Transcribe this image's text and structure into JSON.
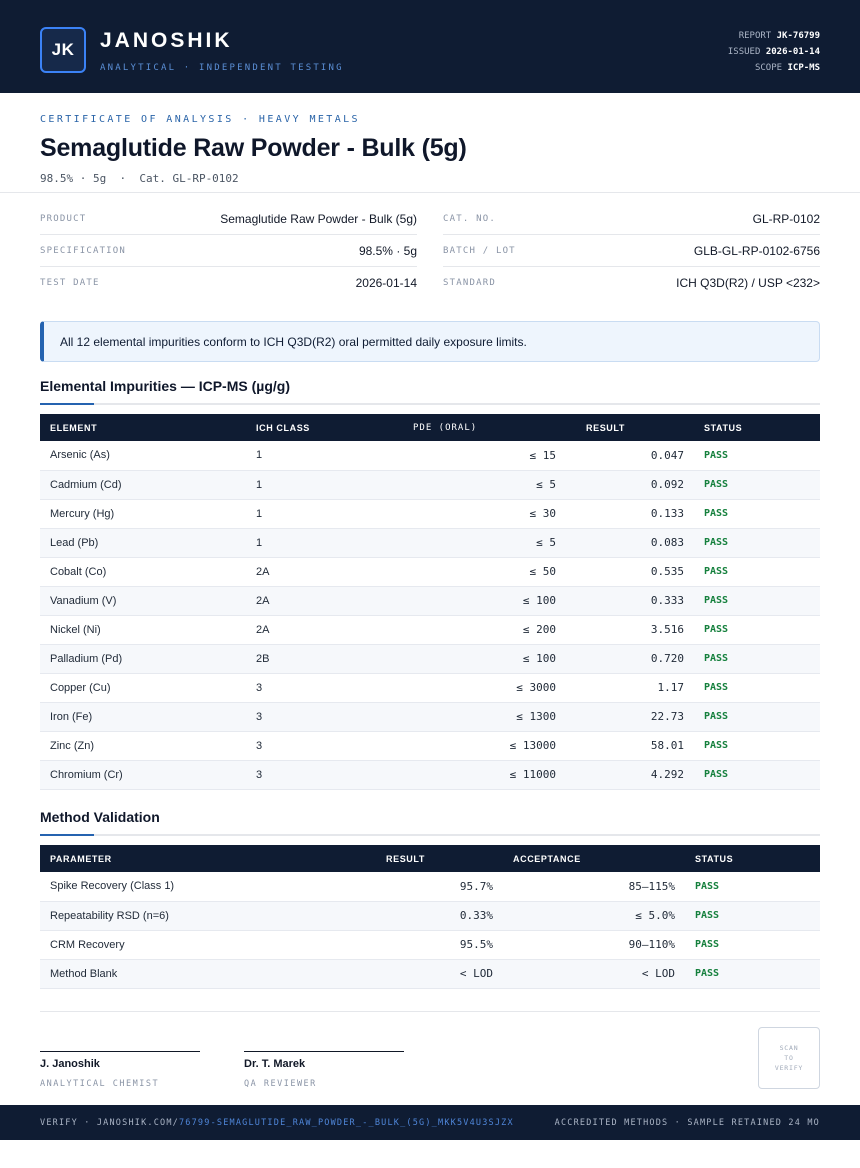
{
  "header": {
    "logo_initials": "JK",
    "brand": "JANOSHIK",
    "tagline": "ANALYTICAL · INDEPENDENT TESTING",
    "report_label": "REPORT",
    "report_value": "JK-76799",
    "issued_label": "ISSUED",
    "issued_value": "2026-01-14",
    "scope_label": "SCOPE",
    "scope_value": "ICP-MS"
  },
  "doc": {
    "kicker": "CERTIFICATE OF ANALYSIS · HEAVY METALS",
    "title": "Semaglutide Raw Powder - Bulk (5g)",
    "subtitle": "98.5% · 5g  ·  Cat. GL-RP-0102"
  },
  "info": {
    "left": [
      {
        "label": "PRODUCT",
        "value": "Semaglutide Raw Powder - Bulk (5g)"
      },
      {
        "label": "SPECIFICATION",
        "value": "98.5% · 5g"
      },
      {
        "label": "TEST DATE",
        "value": "2026-01-14"
      }
    ],
    "right": [
      {
        "label": "CAT. NO.",
        "value": "GL-RP-0102"
      },
      {
        "label": "BATCH / LOT",
        "value": "GLB-GL-RP-0102-6756"
      },
      {
        "label": "STANDARD",
        "value": "ICH Q3D(R2) / USP <232>"
      }
    ]
  },
  "notice": "All 12 elemental impurities conform to ICH Q3D(R2) oral permitted daily exposure limits.",
  "impurities": {
    "title": "Elemental Impurities — ICP-MS (µg/g)",
    "headers": [
      "ELEMENT",
      "ICH CLASS",
      "PDE (ORAL)",
      "RESULT",
      "STATUS"
    ],
    "rows": [
      {
        "element": "Arsenic (As)",
        "class": "1",
        "pde": "≤ 15",
        "result": "0.047",
        "status": "PASS"
      },
      {
        "element": "Cadmium (Cd)",
        "class": "1",
        "pde": "≤ 5",
        "result": "0.092",
        "status": "PASS"
      },
      {
        "element": "Mercury (Hg)",
        "class": "1",
        "pde": "≤ 30",
        "result": "0.133",
        "status": "PASS"
      },
      {
        "element": "Lead (Pb)",
        "class": "1",
        "pde": "≤ 5",
        "result": "0.083",
        "status": "PASS"
      },
      {
        "element": "Cobalt (Co)",
        "class": "2A",
        "pde": "≤ 50",
        "result": "0.535",
        "status": "PASS"
      },
      {
        "element": "Vanadium (V)",
        "class": "2A",
        "pde": "≤ 100",
        "result": "0.333",
        "status": "PASS"
      },
      {
        "element": "Nickel (Ni)",
        "class": "2A",
        "pde": "≤ 200",
        "result": "3.516",
        "status": "PASS"
      },
      {
        "element": "Palladium (Pd)",
        "class": "2B",
        "pde": "≤ 100",
        "result": "0.720",
        "status": "PASS"
      },
      {
        "element": "Copper (Cu)",
        "class": "3",
        "pde": "≤ 3000",
        "result": "1.17",
        "status": "PASS"
      },
      {
        "element": "Iron (Fe)",
        "class": "3",
        "pde": "≤ 1300",
        "result": "22.73",
        "status": "PASS"
      },
      {
        "element": "Zinc (Zn)",
        "class": "3",
        "pde": "≤ 13000",
        "result": "58.01",
        "status": "PASS"
      },
      {
        "element": "Chromium (Cr)",
        "class": "3",
        "pde": "≤ 11000",
        "result": "4.292",
        "status": "PASS"
      }
    ]
  },
  "validation": {
    "title": "Method Validation",
    "headers": [
      "PARAMETER",
      "RESULT",
      "ACCEPTANCE",
      "STATUS"
    ],
    "rows": [
      {
        "parameter": "Spike Recovery (Class 1)",
        "result": "95.7%",
        "acceptance": "85–115%",
        "status": "PASS"
      },
      {
        "parameter": "Repeatability RSD (n=6)",
        "result": "0.33%",
        "acceptance": "≤ 5.0%",
        "status": "PASS"
      },
      {
        "parameter": "CRM Recovery",
        "result": "95.5%",
        "acceptance": "90–110%",
        "status": "PASS"
      },
      {
        "parameter": "Method Blank",
        "result": "< LOD",
        "acceptance": "< LOD",
        "status": "PASS"
      }
    ]
  },
  "signatures": [
    {
      "name": "J. Janoshik",
      "role": "ANALYTICAL CHEMIST"
    },
    {
      "name": "Dr. T. Marek",
      "role": "QA REVIEWER"
    }
  ],
  "scan": {
    "line1": "SCAN",
    "line2": "TO",
    "line3": "VERIFY"
  },
  "footer": {
    "verify_prefix": "VERIFY · JANOSHIK.COM/",
    "verify_path": "76799-SEMAGLUTIDE_RAW_POWDER_-_BULK_(5G)_MKK5V4U3SJZX",
    "right": "ACCREDITED METHODS · SAMPLE RETAINED 24 MO"
  },
  "colors": {
    "navy": "#0f1c33",
    "accent": "#2563b0",
    "pass": "#15803d"
  }
}
